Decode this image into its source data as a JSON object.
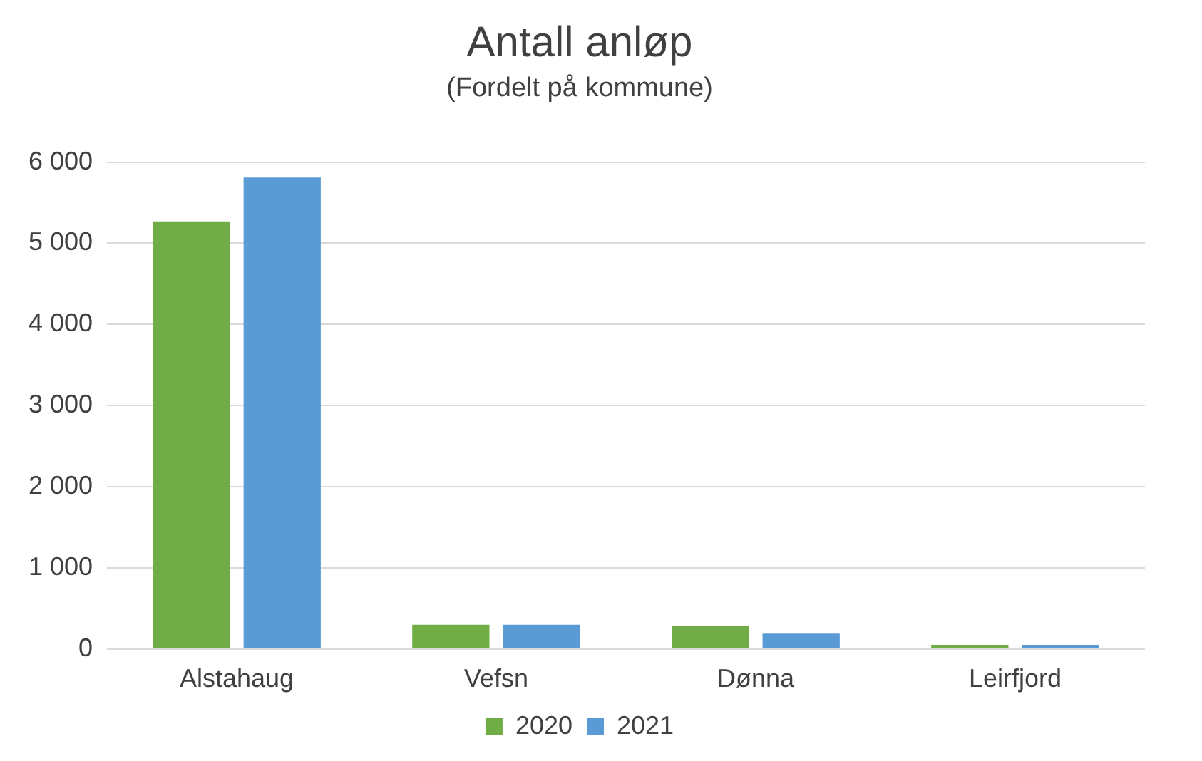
{
  "chart_data": {
    "type": "bar",
    "title": "Antall anløp",
    "subtitle": "(Fordelt på kommune)",
    "categories": [
      "Alstahaug",
      "Vefsn",
      "Dønna",
      "Leirfjord"
    ],
    "series": [
      {
        "name": "2020",
        "color": "#70ad47",
        "values": [
          5270,
          300,
          280,
          50
        ]
      },
      {
        "name": "2021",
        "color": "#5b9bd5",
        "values": [
          5810,
          300,
          190,
          50
        ]
      }
    ],
    "ylim": [
      0,
      6000
    ],
    "yticks": [
      0,
      {
        "value": 1000,
        "label": "1 000"
      },
      {
        "value": 2000,
        "label": "2 000"
      },
      {
        "value": 3000,
        "label": "3 000"
      },
      {
        "value": 4000,
        "label": "4 000"
      },
      {
        "value": 5000,
        "label": "5 000"
      },
      {
        "value": 6000,
        "label": "6 000"
      }
    ],
    "grid": "y",
    "legend": "bottom"
  }
}
